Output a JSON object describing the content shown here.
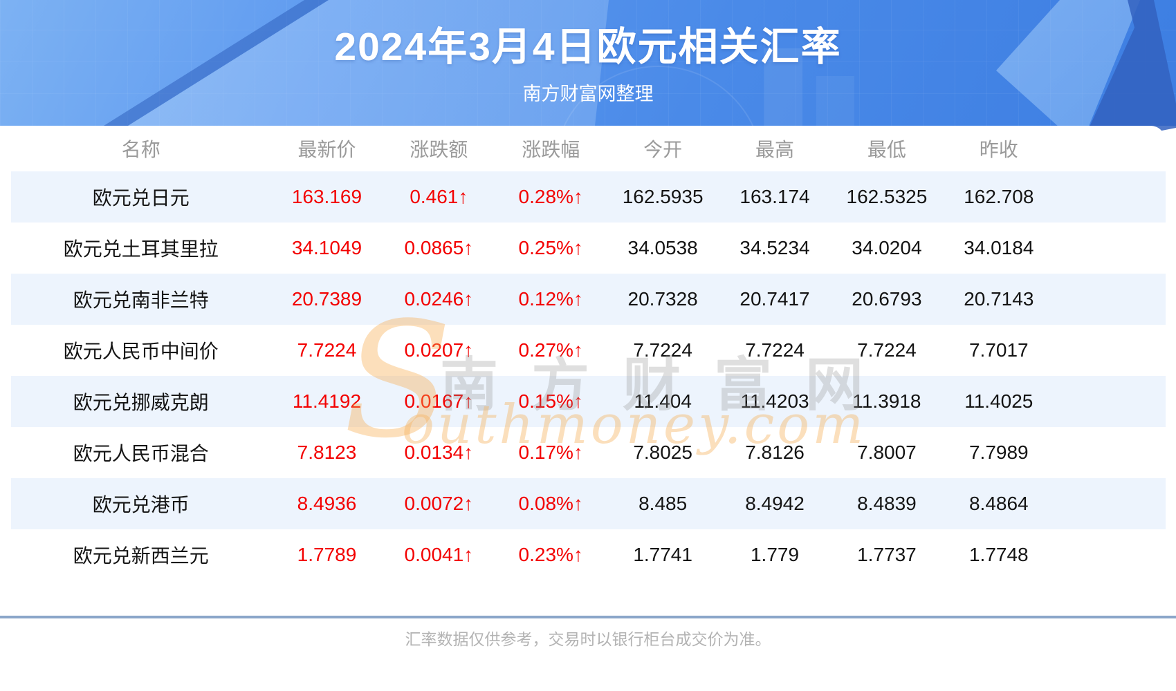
{
  "banner": {
    "title": "2024年3月4日欧元相关汇率",
    "subtitle": "南方财富网整理"
  },
  "table": {
    "columns": [
      "名称",
      "最新价",
      "涨跌额",
      "涨跌幅",
      "今开",
      "最高",
      "最低",
      "昨收"
    ],
    "rows": [
      {
        "name": "欧元兑日元",
        "latest": "163.169",
        "change": "0.461↑",
        "pct": "0.28%↑",
        "open": "162.5935",
        "high": "163.174",
        "low": "162.5325",
        "prev": "162.708"
      },
      {
        "name": "欧元兑土耳其里拉",
        "latest": "34.1049",
        "change": "0.0865↑",
        "pct": "0.25%↑",
        "open": "34.0538",
        "high": "34.5234",
        "low": "34.0204",
        "prev": "34.0184"
      },
      {
        "name": "欧元兑南非兰特",
        "latest": "20.7389",
        "change": "0.0246↑",
        "pct": "0.12%↑",
        "open": "20.7328",
        "high": "20.7417",
        "low": "20.6793",
        "prev": "20.7143"
      },
      {
        "name": "欧元人民币中间价",
        "latest": "7.7224",
        "change": "0.0207↑",
        "pct": "0.27%↑",
        "open": "7.7224",
        "high": "7.7224",
        "low": "7.7224",
        "prev": "7.7017"
      },
      {
        "name": "欧元兑挪威克朗",
        "latest": "11.4192",
        "change": "0.0167↑",
        "pct": "0.15%↑",
        "open": "11.404",
        "high": "11.4203",
        "low": "11.3918",
        "prev": "11.4025"
      },
      {
        "name": "欧元人民币混合",
        "latest": "7.8123",
        "change": "0.0134↑",
        "pct": "0.17%↑",
        "open": "7.8025",
        "high": "7.8126",
        "low": "7.8007",
        "prev": "7.7989"
      },
      {
        "name": "欧元兑港币",
        "latest": "8.4936",
        "change": "0.0072↑",
        "pct": "0.08%↑",
        "open": "8.485",
        "high": "8.4942",
        "low": "8.4839",
        "prev": "8.4864"
      },
      {
        "name": "欧元兑新西兰元",
        "latest": "1.7789",
        "change": "0.0041↑",
        "pct": "0.23%↑",
        "open": "1.7741",
        "high": "1.779",
        "low": "1.7737",
        "prev": "1.7748"
      }
    ]
  },
  "watermark": {
    "s": "S",
    "cn": "南方财富网",
    "en": "outhmoney.com"
  },
  "footer": {
    "note": "汇率数据仅供参考，交易时以银行柜台成交价为准。"
  },
  "colors": {
    "accent-red": "#f30000",
    "banner-blue": "#4a8ae8",
    "stripe": "#edf4fd",
    "divider": "#8ba6c9"
  }
}
